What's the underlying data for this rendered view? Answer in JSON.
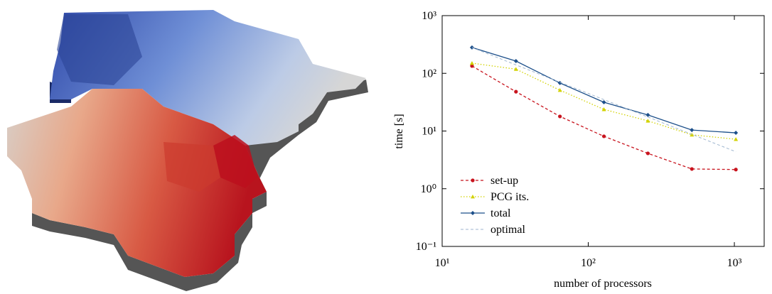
{
  "chart_data": {
    "type": "line",
    "x_label": "number of processors",
    "y_label": "time [s]",
    "x": [
      16,
      32,
      64,
      128,
      256,
      512,
      1024
    ],
    "series": [
      {
        "name": "set-up",
        "color": "#c8141e",
        "dash": "dashed",
        "marker": "circle",
        "values": [
          134,
          48,
          17.9,
          8.1,
          4.1,
          2.2,
          2.15
        ]
      },
      {
        "name": "PCG its.",
        "color": "#d2d200",
        "dash": "dotted",
        "marker": "triangle",
        "values": [
          150,
          118,
          51,
          23.7,
          15,
          8.6,
          7.2
        ]
      },
      {
        "name": "total",
        "color": "#1c4f8a",
        "dash": "solid",
        "marker": "diamond",
        "values": [
          280,
          163,
          68,
          31.5,
          19,
          10.4,
          9.3
        ]
      },
      {
        "name": "optimal",
        "color": "#9fb6cf",
        "dash": "dashed",
        "marker": "none",
        "values": [
          280,
          140,
          70,
          35,
          17.5,
          8.75,
          4.375
        ]
      }
    ],
    "log_x": true,
    "log_y": true,
    "xlim": [
      10,
      1600
    ],
    "ylim": [
      0.1,
      1000
    ],
    "xticks": [
      {
        "value": 10,
        "label": "10¹"
      },
      {
        "value": 100,
        "label": "10²"
      },
      {
        "value": 1000,
        "label": "10³"
      }
    ],
    "yticks": [
      {
        "value": 0.1,
        "label": "10⁻¹"
      },
      {
        "value": 1,
        "label": "10⁰"
      },
      {
        "value": 10,
        "label": "10¹"
      },
      {
        "value": 100,
        "label": "10²"
      },
      {
        "value": 1000,
        "label": "10³"
      }
    ],
    "legend": "lower left",
    "grid": false
  }
}
